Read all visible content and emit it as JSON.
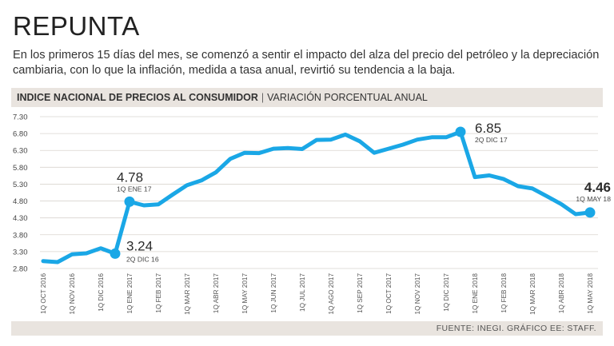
{
  "header": {
    "title": "REPUNTA",
    "subtitle": "En los primeros 15 días del mes, se comenzó a sentir el impacto del alza del precio del petróleo y la depreciación cambiaria, con lo que la inflación, medida a tasa anual, revirtió su tendencia a la baja."
  },
  "chart_header": {
    "main": "INDICE NACIONAL DE PRECIOS AL CONSUMIDOR",
    "separator": "|",
    "sub": "VARIACIÓN PORCENTUAL ANUAL"
  },
  "footer": {
    "source": "FUENTE: INEGI.  GRÁFICO EE: STAFF."
  },
  "colors": {
    "line": "#1aa7e6",
    "grid": "#d9d4cf",
    "band": "#e9e4df"
  },
  "chart_data": {
    "type": "line",
    "title": "INDICE NACIONAL DE PRECIOS AL CONSUMIDOR",
    "subtitle": "VARIACIÓN PORCENTUAL ANUAL",
    "xlabel": "",
    "ylabel": "",
    "ylim": [
      2.8,
      7.3
    ],
    "yticks": [
      2.8,
      3.3,
      3.8,
      4.3,
      4.8,
      5.3,
      5.8,
      6.3,
      6.8,
      7.3
    ],
    "ytick_labels": [
      "2.80",
      "3.30",
      "3.80",
      "4.30",
      "4.80",
      "5.30",
      "5.80",
      "6.30",
      "6.80",
      "7.30"
    ],
    "xtick_labels": [
      "1Q OCT 2016",
      "1Q NOV 2016",
      "1Q DIC 2016",
      "1Q ENE 2017",
      "1Q FEB 2017",
      "1Q MAR 2017",
      "1Q ABR 2017",
      "1Q MAY 2017",
      "1Q JUN 2017",
      "1Q JUL 2017",
      "1Q AGO 2017",
      "1Q SEP 2017",
      "1Q OCT 2017",
      "1Q NOV 2017",
      "1Q DIC 2017",
      "1Q ENE 2018",
      "1Q FEB 2018",
      "1Q MAR 2018",
      "1Q ABR 2018",
      "1Q MAY 2018"
    ],
    "xtick_index": [
      0,
      2,
      4,
      6,
      8,
      10,
      12,
      14,
      16,
      18,
      20,
      22,
      24,
      26,
      28,
      30,
      32,
      34,
      36,
      38
    ],
    "values": [
      3.02,
      2.99,
      3.22,
      3.25,
      3.4,
      3.24,
      4.78,
      4.67,
      4.7,
      4.99,
      5.27,
      5.41,
      5.65,
      6.05,
      6.23,
      6.22,
      6.35,
      6.37,
      6.34,
      6.61,
      6.62,
      6.77,
      6.57,
      6.23,
      6.35,
      6.47,
      6.62,
      6.69,
      6.69,
      6.85,
      5.51,
      5.56,
      5.45,
      5.24,
      5.17,
      4.94,
      4.71,
      4.41,
      4.46
    ],
    "annotations": [
      {
        "index": 5,
        "value": "3.24",
        "label": "2Q DIC 16",
        "bold": false
      },
      {
        "index": 6,
        "value": "4.78",
        "label": "1Q ENE 17",
        "bold": false
      },
      {
        "index": 29,
        "value": "6.85",
        "label": "2Q DIC 17",
        "bold": false
      },
      {
        "index": 38,
        "value": "4.46",
        "label": "1Q MAY 18",
        "bold": true
      }
    ]
  }
}
